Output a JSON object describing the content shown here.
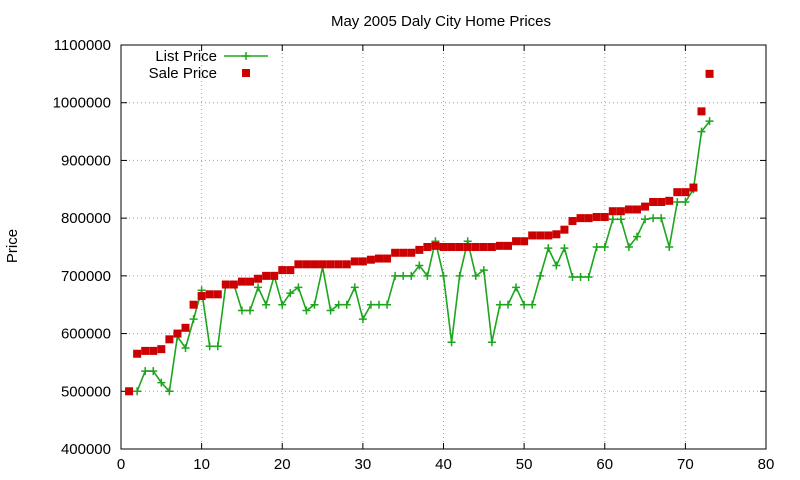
{
  "chart_data": {
    "type": "line",
    "title": "May 2005 Daly City Home Prices",
    "xlabel": "",
    "ylabel": "Price",
    "xlim": [
      0,
      80
    ],
    "ylim": [
      400000,
      1100000
    ],
    "xticks": [
      0,
      10,
      20,
      30,
      40,
      50,
      60,
      70,
      80
    ],
    "yticks": [
      400000,
      500000,
      600000,
      700000,
      800000,
      900000,
      1000000,
      1100000
    ],
    "grid": true,
    "legend_position": "top-left",
    "series": [
      {
        "name": "List Price",
        "style": "line-plus",
        "color": "#1ea51e",
        "points": [
          [
            2,
            500000
          ],
          [
            3,
            535000
          ],
          [
            4,
            535000
          ],
          [
            5,
            515000
          ],
          [
            6,
            500000
          ],
          [
            7,
            595000
          ],
          [
            8,
            575000
          ],
          [
            9,
            625000
          ],
          [
            10,
            675000
          ],
          [
            11,
            578000
          ],
          [
            12,
            578000
          ],
          [
            13,
            685000
          ],
          [
            14,
            685000
          ],
          [
            15,
            640000
          ],
          [
            16,
            640000
          ],
          [
            17,
            680000
          ],
          [
            18,
            650000
          ],
          [
            19,
            700000
          ],
          [
            20,
            650000
          ],
          [
            21,
            670000
          ],
          [
            22,
            680000
          ],
          [
            23,
            640000
          ],
          [
            24,
            650000
          ],
          [
            25,
            715000
          ],
          [
            26,
            640000
          ],
          [
            27,
            650000
          ],
          [
            28,
            650000
          ],
          [
            29,
            680000
          ],
          [
            30,
            625000
          ],
          [
            31,
            650000
          ],
          [
            32,
            650000
          ],
          [
            33,
            650000
          ],
          [
            34,
            700000
          ],
          [
            35,
            700000
          ],
          [
            36,
            700000
          ],
          [
            37,
            718000
          ],
          [
            38,
            700000
          ],
          [
            39,
            760000
          ],
          [
            40,
            700000
          ],
          [
            41,
            585000
          ],
          [
            42,
            700000
          ],
          [
            43,
            760000
          ],
          [
            44,
            700000
          ],
          [
            45,
            710000
          ],
          [
            46,
            585000
          ],
          [
            47,
            650000
          ],
          [
            48,
            650000
          ],
          [
            49,
            680000
          ],
          [
            50,
            650000
          ],
          [
            51,
            650000
          ],
          [
            52,
            700000
          ],
          [
            53,
            748000
          ],
          [
            54,
            718000
          ],
          [
            55,
            748000
          ],
          [
            56,
            698000
          ],
          [
            57,
            698000
          ],
          [
            58,
            698000
          ],
          [
            59,
            750000
          ],
          [
            60,
            750000
          ],
          [
            61,
            798000
          ],
          [
            62,
            798000
          ],
          [
            63,
            750000
          ],
          [
            64,
            768000
          ],
          [
            65,
            798000
          ],
          [
            66,
            800000
          ],
          [
            67,
            800000
          ],
          [
            68,
            750000
          ],
          [
            69,
            828000
          ],
          [
            70,
            828000
          ],
          [
            71,
            850000
          ],
          [
            72,
            950000
          ],
          [
            73,
            968000
          ]
        ]
      },
      {
        "name": "Sale Price",
        "style": "square-markers",
        "color": "#cc0000",
        "points": [
          [
            1,
            500000
          ],
          [
            2,
            565000
          ],
          [
            3,
            570000
          ],
          [
            4,
            570000
          ],
          [
            5,
            573000
          ],
          [
            6,
            590000
          ],
          [
            7,
            600000
          ],
          [
            8,
            610000
          ],
          [
            9,
            650000
          ],
          [
            10,
            665000
          ],
          [
            11,
            668000
          ],
          [
            12,
            668000
          ],
          [
            13,
            685000
          ],
          [
            14,
            685000
          ],
          [
            15,
            690000
          ],
          [
            16,
            690000
          ],
          [
            17,
            695000
          ],
          [
            18,
            700000
          ],
          [
            19,
            700000
          ],
          [
            20,
            710000
          ],
          [
            21,
            710000
          ],
          [
            22,
            720000
          ],
          [
            23,
            720000
          ],
          [
            24,
            720000
          ],
          [
            25,
            720000
          ],
          [
            26,
            720000
          ],
          [
            27,
            720000
          ],
          [
            28,
            720000
          ],
          [
            29,
            725000
          ],
          [
            30,
            725000
          ],
          [
            31,
            728000
          ],
          [
            32,
            730000
          ],
          [
            33,
            730000
          ],
          [
            34,
            740000
          ],
          [
            35,
            740000
          ],
          [
            36,
            740000
          ],
          [
            37,
            745000
          ],
          [
            38,
            750000
          ],
          [
            39,
            752000
          ],
          [
            40,
            750000
          ],
          [
            41,
            750000
          ],
          [
            42,
            750000
          ],
          [
            43,
            750000
          ],
          [
            44,
            750000
          ],
          [
            45,
            750000
          ],
          [
            46,
            750000
          ],
          [
            47,
            752000
          ],
          [
            48,
            752000
          ],
          [
            49,
            760000
          ],
          [
            50,
            760000
          ],
          [
            51,
            770000
          ],
          [
            52,
            770000
          ],
          [
            53,
            770000
          ],
          [
            54,
            772000
          ],
          [
            55,
            780000
          ],
          [
            56,
            795000
          ],
          [
            57,
            800000
          ],
          [
            58,
            800000
          ],
          [
            59,
            802000
          ],
          [
            60,
            802000
          ],
          [
            61,
            812000
          ],
          [
            62,
            812000
          ],
          [
            63,
            815000
          ],
          [
            64,
            815000
          ],
          [
            65,
            820000
          ],
          [
            66,
            828000
          ],
          [
            67,
            828000
          ],
          [
            68,
            830000
          ],
          [
            69,
            845000
          ],
          [
            70,
            845000
          ],
          [
            71,
            853000
          ],
          [
            72,
            985000
          ],
          [
            73,
            1050000
          ]
        ]
      }
    ]
  }
}
